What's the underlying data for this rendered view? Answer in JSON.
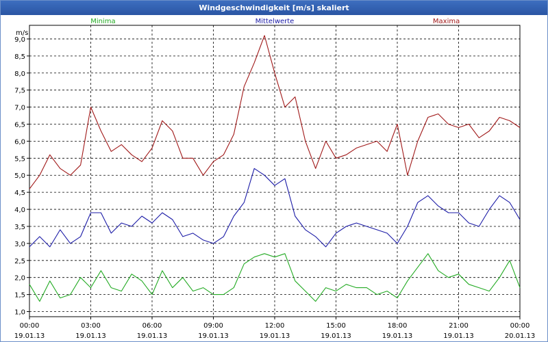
{
  "window": {
    "title": "Windgeschwindigkeit [m/s] skaliert"
  },
  "chart_data": {
    "type": "line",
    "title": "Windgeschwindigkeit [m/s] skaliert",
    "ylabel": "m/s",
    "ylim": [
      0.85,
      9.4
    ],
    "yticks": [
      "9,0",
      "8,5",
      "8,0",
      "7,5",
      "7,0",
      "6,5",
      "6,0",
      "5,5",
      "5,0",
      "4,5",
      "4,0",
      "3,5",
      "3,0",
      "2,5",
      "2,0",
      "1,5",
      "1,0"
    ],
    "ytick_values": [
      9.0,
      8.5,
      8.0,
      7.5,
      7.0,
      6.5,
      6.0,
      5.5,
      5.0,
      4.5,
      4.0,
      3.5,
      3.0,
      2.5,
      2.0,
      1.5,
      1.0
    ],
    "xlim_hours": [
      0,
      24
    ],
    "xticks": [
      {
        "time": "00:00",
        "date": "19.01.13",
        "hour": 0
      },
      {
        "time": "03:00",
        "date": "19.01.13",
        "hour": 3
      },
      {
        "time": "06:00",
        "date": "19.01.13",
        "hour": 6
      },
      {
        "time": "09:00",
        "date": "19.01.13",
        "hour": 9
      },
      {
        "time": "12:00",
        "date": "19.01.13",
        "hour": 12
      },
      {
        "time": "15:00",
        "date": "19.01.13",
        "hour": 15
      },
      {
        "time": "18:00",
        "date": "19.01.13",
        "hour": 18
      },
      {
        "time": "21:00",
        "date": "19.01.13",
        "hour": 21
      },
      {
        "time": "00:00",
        "date": "20.01.13",
        "hour": 24
      }
    ],
    "grid": true,
    "series": [
      {
        "name": "Minima",
        "color": "#22aa22",
        "x_hours": [
          0,
          0.5,
          1,
          1.5,
          2,
          2.5,
          3,
          3.5,
          4,
          4.5,
          5,
          5.5,
          6,
          6.5,
          7,
          7.5,
          8,
          8.5,
          9,
          9.5,
          10,
          10.5,
          11,
          11.5,
          12,
          12.5,
          13,
          13.5,
          14,
          14.5,
          15,
          15.5,
          16,
          16.5,
          17,
          17.5,
          18,
          18.5,
          19,
          19.5,
          20,
          20.5,
          21,
          21.5,
          22,
          22.5,
          23,
          23.5,
          24
        ],
        "values": [
          1.8,
          1.3,
          1.9,
          1.4,
          1.5,
          2.0,
          1.7,
          2.2,
          1.7,
          1.6,
          2.1,
          1.9,
          1.5,
          2.2,
          1.7,
          2.0,
          1.6,
          1.7,
          1.5,
          1.5,
          1.7,
          2.4,
          2.6,
          2.7,
          2.6,
          2.7,
          1.9,
          1.6,
          1.3,
          1.7,
          1.6,
          1.8,
          1.7,
          1.7,
          1.5,
          1.6,
          1.4,
          1.9,
          2.3,
          2.7,
          2.2,
          2.0,
          2.1,
          1.8,
          1.7,
          1.6,
          2.0,
          2.5,
          1.7
        ]
      },
      {
        "name": "Mittelwerte",
        "color": "#1a1aa6",
        "x_hours": [
          0,
          0.5,
          1,
          1.5,
          2,
          2.5,
          3,
          3.5,
          4,
          4.5,
          5,
          5.5,
          6,
          6.5,
          7,
          7.5,
          8,
          8.5,
          9,
          9.5,
          10,
          10.5,
          11,
          11.5,
          12,
          12.5,
          13,
          13.5,
          14,
          14.5,
          15,
          15.5,
          16,
          16.5,
          17,
          17.5,
          18,
          18.5,
          19,
          19.5,
          20,
          20.5,
          21,
          21.5,
          22,
          22.5,
          23,
          23.5,
          24
        ],
        "values": [
          2.9,
          3.2,
          2.9,
          3.4,
          3.0,
          3.2,
          3.9,
          3.9,
          3.3,
          3.6,
          3.5,
          3.8,
          3.6,
          3.9,
          3.7,
          3.2,
          3.3,
          3.1,
          3.0,
          3.2,
          3.8,
          4.2,
          5.2,
          5.0,
          4.7,
          4.9,
          3.8,
          3.4,
          3.2,
          2.9,
          3.3,
          3.5,
          3.6,
          3.5,
          3.4,
          3.3,
          3.0,
          3.5,
          4.2,
          4.4,
          4.1,
          3.9,
          3.9,
          3.6,
          3.5,
          4.0,
          4.4,
          4.2,
          3.7
        ]
      },
      {
        "name": "Maxima",
        "color": "#a01818",
        "x_hours": [
          0,
          0.5,
          1,
          1.5,
          2,
          2.5,
          3,
          3.5,
          4,
          4.5,
          5,
          5.5,
          6,
          6.5,
          7,
          7.5,
          8,
          8.5,
          9,
          9.5,
          10,
          10.5,
          11,
          11.5,
          12,
          12.5,
          13,
          13.5,
          14,
          14.5,
          15,
          15.5,
          16,
          16.5,
          17,
          17.5,
          18,
          18.5,
          19,
          19.5,
          20,
          20.5,
          21,
          21.5,
          22,
          22.5,
          23,
          23.5,
          24
        ],
        "values": [
          4.6,
          5.0,
          5.6,
          5.2,
          5.0,
          5.3,
          7.0,
          6.3,
          5.7,
          5.9,
          5.6,
          5.4,
          5.8,
          6.6,
          6.3,
          5.5,
          5.5,
          5.0,
          5.4,
          5.6,
          6.2,
          7.6,
          8.3,
          9.1,
          8.0,
          7.0,
          7.3,
          6.0,
          5.2,
          6.0,
          5.5,
          5.6,
          5.8,
          5.9,
          6.0,
          5.7,
          6.5,
          5.0,
          6.0,
          6.7,
          6.8,
          6.5,
          6.4,
          6.5,
          6.1,
          6.3,
          6.7,
          6.6,
          6.4
        ]
      }
    ]
  }
}
